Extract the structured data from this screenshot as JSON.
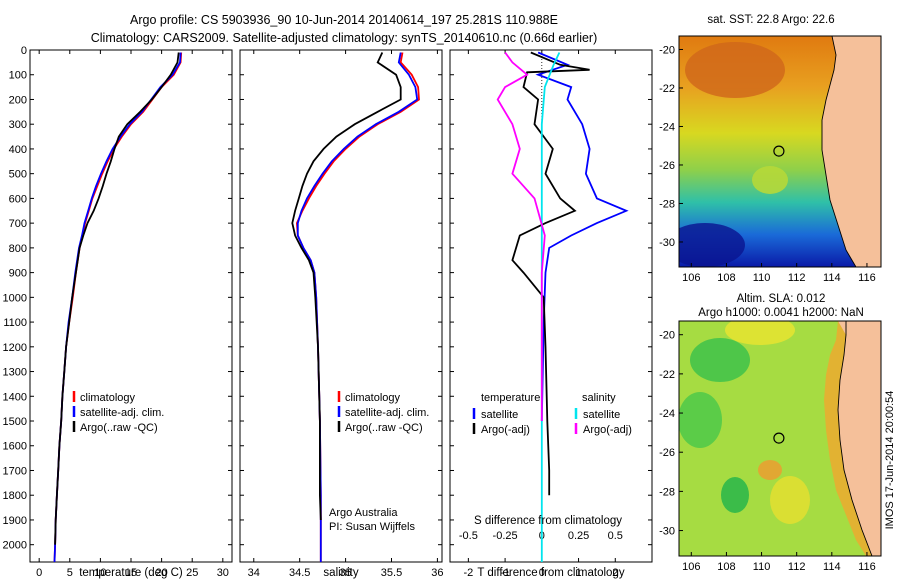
{
  "figure": {
    "title_line1": "Argo profile: CS 5903936_90 10-Jun-2014 20140614_197 25.281S 110.988E",
    "title_line2": "Climatology: CARS2009. Satellite-adjusted climatology: synTS_20140610.nc (0.66d earlier)",
    "credit_org": "Argo Australia",
    "credit_pi": "PI: Susan Wijffels",
    "watermark": "IMOS 17-Jun-2014 20:00:54",
    "sst_title": "sat. SST: 22.8 Argo: 22.6",
    "sla_title_line1": "Altim. SLA: 0.012",
    "sla_title_line2": "Argo h1000: 0.0041 h2000: NaN",
    "colors": {
      "climatology": "#ff0000",
      "satellite": "#0000ff",
      "argo": "#000000",
      "salinity_satellite": "#00e5ee",
      "salinity_argo": "#ff00ff"
    }
  },
  "chart_data": [
    {
      "type": "line",
      "panel": "temperature",
      "xlabel": "temperature (deg C)",
      "xticks": [
        0,
        5,
        10,
        15,
        20,
        25,
        30
      ],
      "xlim": [
        -1.5,
        31.5
      ],
      "ylim": [
        2070,
        0
      ],
      "yticks": [
        0,
        100,
        200,
        300,
        400,
        500,
        600,
        700,
        800,
        900,
        1000,
        1100,
        1200,
        1300,
        1400,
        1500,
        1600,
        1700,
        1800,
        1900,
        2000
      ],
      "legend": [
        "climatology",
        "satellite-adj. clim.",
        "Argo(..raw -QC)"
      ],
      "series": [
        {
          "name": "climatology",
          "color": "#ff0000",
          "points": [
            [
              23.2,
              10
            ],
            [
              23.1,
              50
            ],
            [
              22,
              100
            ],
            [
              20,
              150
            ],
            [
              18.5,
              200
            ],
            [
              17,
              250
            ],
            [
              15,
              300
            ],
            [
              13.5,
              350
            ],
            [
              12.2,
              400
            ],
            [
              11.2,
              450
            ],
            [
              10.3,
              500
            ],
            [
              9.5,
              550
            ],
            [
              8.7,
              600
            ],
            [
              8.1,
              650
            ],
            [
              7.5,
              700
            ],
            [
              7.1,
              750
            ],
            [
              6.6,
              800
            ],
            [
              6,
              900
            ],
            [
              5.5,
              1000
            ],
            [
              4.9,
              1100
            ],
            [
              4.4,
              1200
            ],
            [
              4.1,
              1300
            ],
            [
              3.8,
              1400
            ],
            [
              3.6,
              1500
            ],
            [
              3.3,
              1600
            ],
            [
              3.1,
              1700
            ],
            [
              2.9,
              1800
            ],
            [
              2.7,
              1900
            ],
            [
              2.6,
              2000
            ],
            [
              2.5,
              2070
            ]
          ]
        },
        {
          "name": "satellite-adj. clim.",
          "color": "#0000ff",
          "points": [
            [
              23.1,
              10
            ],
            [
              23,
              50
            ],
            [
              21.8,
              100
            ],
            [
              19.8,
              150
            ],
            [
              18.3,
              200
            ],
            [
              16.8,
              250
            ],
            [
              14.8,
              300
            ],
            [
              13.3,
              350
            ],
            [
              12,
              400
            ],
            [
              11,
              450
            ],
            [
              10.1,
              500
            ],
            [
              9.3,
              550
            ],
            [
              8.6,
              600
            ],
            [
              8,
              650
            ],
            [
              7.4,
              700
            ],
            [
              7,
              750
            ],
            [
              6.5,
              800
            ],
            [
              5.9,
              900
            ],
            [
              5.4,
              1000
            ],
            [
              4.8,
              1100
            ],
            [
              4.4,
              1200
            ],
            [
              4.1,
              1300
            ],
            [
              3.8,
              1400
            ],
            [
              3.6,
              1500
            ],
            [
              3.3,
              1600
            ],
            [
              3.1,
              1700
            ],
            [
              2.9,
              1800
            ],
            [
              2.7,
              1900
            ],
            [
              2.6,
              2000
            ],
            [
              2.5,
              2070
            ]
          ]
        },
        {
          "name": "Argo(..raw -QC)",
          "color": "#000000",
          "points": [
            [
              22.8,
              10
            ],
            [
              22.6,
              50
            ],
            [
              21.5,
              100
            ],
            [
              20,
              150
            ],
            [
              18.4,
              200
            ],
            [
              16.5,
              250
            ],
            [
              14.4,
              300
            ],
            [
              13,
              350
            ],
            [
              12.3,
              400
            ],
            [
              11.7,
              450
            ],
            [
              11,
              500
            ],
            [
              10.4,
              550
            ],
            [
              9.7,
              600
            ],
            [
              8.9,
              650
            ],
            [
              7.9,
              700
            ],
            [
              7.2,
              750
            ],
            [
              6.6,
              800
            ],
            [
              6,
              900
            ],
            [
              5.4,
              1000
            ],
            [
              4.9,
              1100
            ],
            [
              4.4,
              1200
            ],
            [
              4.1,
              1300
            ],
            [
              3.8,
              1400
            ],
            [
              3.6,
              1500
            ],
            [
              3.3,
              1600
            ],
            [
              3.1,
              1700
            ],
            [
              2.9,
              1800
            ],
            [
              2.7,
              1900
            ],
            [
              2.6,
              2000
            ]
          ]
        }
      ]
    },
    {
      "type": "line",
      "panel": "salinity",
      "xlabel": "salinity",
      "xticks": [
        34,
        34.5,
        35,
        35.5,
        36
      ],
      "xlim": [
        33.85,
        36.05
      ],
      "ylim": [
        2070,
        0
      ],
      "legend": [
        "climatology",
        "satellite-adj. clim.",
        "Argo(..raw -QC)"
      ],
      "series": [
        {
          "name": "climatology",
          "color": "#ff0000",
          "points": [
            [
              35.62,
              10
            ],
            [
              35.6,
              50
            ],
            [
              35.72,
              100
            ],
            [
              35.79,
              150
            ],
            [
              35.8,
              200
            ],
            [
              35.6,
              250
            ],
            [
              35.35,
              300
            ],
            [
              35.15,
              350
            ],
            [
              35,
              400
            ],
            [
              34.87,
              450
            ],
            [
              34.77,
              500
            ],
            [
              34.68,
              550
            ],
            [
              34.6,
              600
            ],
            [
              34.53,
              650
            ],
            [
              34.47,
              700
            ],
            [
              34.48,
              750
            ],
            [
              34.54,
              800
            ],
            [
              34.62,
              850
            ],
            [
              34.66,
              900
            ],
            [
              34.68,
              1000
            ],
            [
              34.7,
              1200
            ],
            [
              34.72,
              1500
            ],
            [
              34.73,
              1800
            ],
            [
              34.73,
              2070
            ]
          ]
        },
        {
          "name": "satellite-adj. clim.",
          "color": "#0000ff",
          "points": [
            [
              35.6,
              10
            ],
            [
              35.58,
              50
            ],
            [
              35.69,
              100
            ],
            [
              35.76,
              150
            ],
            [
              35.78,
              200
            ],
            [
              35.58,
              250
            ],
            [
              35.33,
              300
            ],
            [
              35.13,
              350
            ],
            [
              34.98,
              400
            ],
            [
              34.85,
              450
            ],
            [
              34.75,
              500
            ],
            [
              34.66,
              550
            ],
            [
              34.58,
              600
            ],
            [
              34.52,
              650
            ],
            [
              34.48,
              700
            ],
            [
              34.48,
              750
            ],
            [
              34.54,
              800
            ],
            [
              34.62,
              850
            ],
            [
              34.66,
              900
            ],
            [
              34.68,
              1000
            ],
            [
              34.7,
              1200
            ],
            [
              34.72,
              1500
            ],
            [
              34.73,
              1800
            ],
            [
              34.73,
              2070
            ]
          ]
        },
        {
          "name": "Argo(..raw -QC)",
          "color": "#000000",
          "points": [
            [
              35.4,
              10
            ],
            [
              35.35,
              50
            ],
            [
              35.55,
              100
            ],
            [
              35.6,
              150
            ],
            [
              35.6,
              200
            ],
            [
              35.35,
              250
            ],
            [
              35.1,
              300
            ],
            [
              34.9,
              350
            ],
            [
              34.76,
              400
            ],
            [
              34.65,
              450
            ],
            [
              34.58,
              500
            ],
            [
              34.53,
              550
            ],
            [
              34.49,
              600
            ],
            [
              34.45,
              650
            ],
            [
              34.42,
              700
            ],
            [
              34.45,
              750
            ],
            [
              34.52,
              800
            ],
            [
              34.6,
              850
            ],
            [
              34.65,
              900
            ],
            [
              34.67,
              1000
            ],
            [
              34.7,
              1200
            ],
            [
              34.72,
              1500
            ],
            [
              34.72,
              1800
            ],
            [
              34.73,
              1900
            ]
          ]
        }
      ]
    },
    {
      "type": "line",
      "panel": "difference",
      "xlabel": "T difference from climatology",
      "xlabel_top": "S difference from climatology",
      "xticks": [
        -2,
        -1,
        0,
        1,
        2
      ],
      "xticks_top": [
        -0.5,
        -0.25,
        0,
        0.25,
        0.5
      ],
      "xlim": [
        -2.5,
        3
      ],
      "ylim": [
        2070,
        0
      ],
      "legend_headers": [
        "temperature",
        "salinity"
      ],
      "legend": [
        "satellite",
        "Argo(-adj)",
        "satellite",
        "Argo(-adj)"
      ],
      "series": [
        {
          "name": "satellite",
          "quantity": "temperature",
          "color": "#0000ff",
          "points": [
            [
              -0.1,
              10
            ],
            [
              0.7,
              60
            ],
            [
              -0.1,
              100
            ],
            [
              0.8,
              150
            ],
            [
              0.7,
              200
            ],
            [
              1.1,
              300
            ],
            [
              1.3,
              400
            ],
            [
              1.2,
              500
            ],
            [
              1.5,
              600
            ],
            [
              2.3,
              650
            ],
            [
              1.5,
              700
            ],
            [
              0.8,
              750
            ],
            [
              0.2,
              800
            ],
            [
              0.1,
              900
            ],
            [
              0.05,
              1100
            ],
            [
              0,
              1500
            ]
          ]
        },
        {
          "name": "Argo(-adj)",
          "quantity": "temperature",
          "color": "#000000",
          "points": [
            [
              -0.3,
              10
            ],
            [
              0.5,
              60
            ],
            [
              1.3,
              80
            ],
            [
              -0.4,
              90
            ],
            [
              -0.5,
              150
            ],
            [
              -0.1,
              200
            ],
            [
              -0.2,
              300
            ],
            [
              0.3,
              400
            ],
            [
              0.1,
              500
            ],
            [
              0.5,
              600
            ],
            [
              0.9,
              650
            ],
            [
              0.1,
              700
            ],
            [
              -0.6,
              750
            ],
            [
              -0.8,
              850
            ],
            [
              -0.5,
              900
            ],
            [
              0.05,
              1000
            ],
            [
              0.1,
              1200
            ],
            [
              0.15,
              1500
            ],
            [
              0.2,
              1700
            ],
            [
              0.2,
              1800
            ]
          ]
        },
        {
          "name": "satellite",
          "quantity": "salinity",
          "color": "#00e5ee",
          "points": [
            [
              0.12,
              10
            ],
            [
              0.08,
              60
            ],
            [
              0.02,
              150
            ],
            [
              0,
              300
            ],
            [
              0,
              500
            ],
            [
              0,
              1000
            ],
            [
              0,
              1500
            ],
            [
              0,
              2000
            ],
            [
              0,
              2070
            ]
          ]
        },
        {
          "name": "Argo(-adj)",
          "quantity": "salinity",
          "color": "#ff00ff",
          "points": [
            [
              -0.25,
              10
            ],
            [
              -0.2,
              50
            ],
            [
              -0.1,
              100
            ],
            [
              -0.25,
              150
            ],
            [
              -0.3,
              200
            ],
            [
              -0.2,
              300
            ],
            [
              -0.15,
              400
            ],
            [
              -0.2,
              500
            ],
            [
              -0.05,
              600
            ],
            [
              0.02,
              750
            ],
            [
              0,
              900
            ],
            [
              0,
              1000
            ],
            [
              0,
              1200
            ],
            [
              0,
              1500
            ]
          ]
        }
      ]
    },
    {
      "type": "heatmap",
      "panel": "sst",
      "title": "sat. SST: 22.8 Argo: 22.6",
      "xticks": [
        106,
        108,
        110,
        112,
        114,
        116
      ],
      "yticks": [
        -20,
        -22,
        -24,
        -26,
        -28,
        -30
      ],
      "xlim": [
        105.3,
        116.8
      ],
      "ylim": [
        -31.3,
        -19.3
      ],
      "marker": {
        "lon": 110.99,
        "lat": -25.28
      }
    },
    {
      "type": "heatmap",
      "panel": "sla",
      "title": "Altim. SLA: 0.012",
      "subtitle": "Argo h1000: 0.0041 h2000: NaN",
      "xticks": [
        106,
        108,
        110,
        112,
        114,
        116
      ],
      "yticks": [
        -20,
        -22,
        -24,
        -26,
        -28,
        -30
      ],
      "xlim": [
        105.3,
        116.8
      ],
      "ylim": [
        -31.3,
        -19.3
      ],
      "marker": {
        "lon": 110.99,
        "lat": -25.28
      }
    }
  ]
}
